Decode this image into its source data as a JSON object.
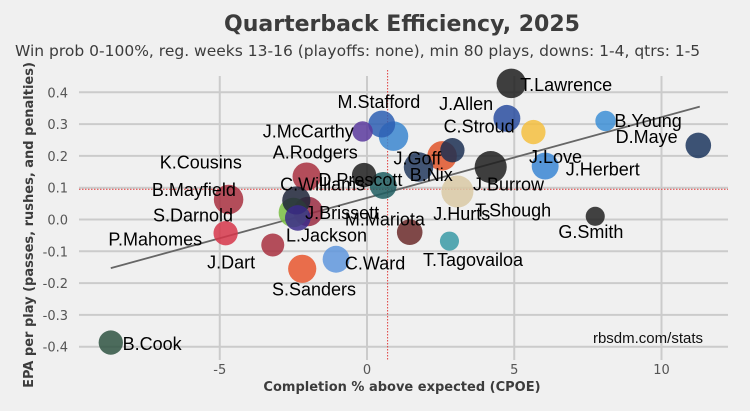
{
  "chart_data": {
    "type": "scatter",
    "title": "Quarterback Efficiency, 2025",
    "subtitle": "Win prob 0-100%, reg. weeks 13-16 (playoffs: none), min 80 plays, downs: 1-4, qtrs: 1-5",
    "xlabel": "Completion % above expected (CPOE)",
    "ylabel": "EPA per play (passes, rushes, and penalties)",
    "xlim": [
      -9.8,
      11.8
    ],
    "ylim": [
      -0.43,
      0.48
    ],
    "x_ticks": [
      -5,
      0,
      5,
      10
    ],
    "x_tick_labels": [
      "-5",
      "0",
      "5",
      "10"
    ],
    "y_ticks": [
      0.4,
      0.3,
      0.2,
      0.1,
      0.0,
      -0.1,
      -0.2,
      -0.3,
      -0.4
    ],
    "y_tick_labels": [
      "0.4",
      "0.3",
      "0.2",
      "0.1",
      "0.0",
      "-0.1",
      "-0.2",
      "-0.3",
      "-0.4"
    ],
    "grid": true,
    "reference_lines": {
      "x_mean": 0.7,
      "y_mean": 0.095,
      "color": "#e03c3c"
    },
    "trend_line": {
      "x": [
        -8.7,
        11.3
      ],
      "y": [
        -0.153,
        0.355
      ]
    },
    "watermark": "rbsdm.com/stats",
    "points": [
      {
        "name": "T.Lawrence",
        "x": 4.9,
        "y": 0.428,
        "size": 0.75,
        "color": "#1f1f1f",
        "label_dx": 0.3,
        "label_dy": -0.005,
        "anchor": "start"
      },
      {
        "name": "J.Allen",
        "x": 4.75,
        "y": 0.318,
        "size": 0.65,
        "color": "#2a4ea0",
        "label_dx": -2.3,
        "label_dy": 0.045,
        "anchor": "start"
      },
      {
        "name": "J.Love",
        "x": 5.65,
        "y": 0.275,
        "size": 0.55,
        "color": "#f5c040",
        "label_dx": -0.15,
        "label_dy": -0.078,
        "anchor": "start"
      },
      {
        "name": "B.Young",
        "x": 8.1,
        "y": 0.31,
        "size": 0.4,
        "color": "#3d8fd6",
        "label_dx": 0.3,
        "label_dy": 0.0,
        "anchor": "start"
      },
      {
        "name": "D.Maye",
        "x": 11.25,
        "y": 0.233,
        "size": 0.6,
        "color": "#1c365e",
        "label_dx": -0.7,
        "label_dy": 0.027,
        "anchor": "end"
      },
      {
        "name": "J.Herbert",
        "x": 6.05,
        "y": 0.168,
        "size": 0.65,
        "color": "#3a86d4",
        "label_dx": 0.7,
        "label_dy": -0.01,
        "anchor": "start"
      },
      {
        "name": "J.Burrow",
        "x": 4.2,
        "y": 0.165,
        "size": 0.85,
        "color": "#1f1f1f",
        "label_dx": -0.6,
        "label_dy": -0.055,
        "anchor": "start"
      },
      {
        "name": "C.Stroud",
        "x": 2.9,
        "y": 0.218,
        "size": 0.55,
        "color": "#1b2f52",
        "label_dx": -0.3,
        "label_dy": 0.075,
        "anchor": "start"
      },
      {
        "name": "B.Nix",
        "x": 2.55,
        "y": 0.2,
        "size": 0.75,
        "color": "#e0552a",
        "label_dx": -1.1,
        "label_dy": -0.06,
        "anchor": "start"
      },
      {
        "name": "D.Prescott",
        "x": 1.75,
        "y": 0.165,
        "size": 0.75,
        "color": "#233a5e",
        "label_dx": -3.4,
        "label_dy": -0.04,
        "anchor": "start"
      },
      {
        "name": "J.Goff",
        "x": 0.9,
        "y": 0.262,
        "size": 0.75,
        "color": "#3b86cf",
        "label_dx": 0.0,
        "label_dy": -0.07,
        "anchor": "start"
      },
      {
        "name": "M.Stafford",
        "x": 0.5,
        "y": 0.3,
        "size": 0.65,
        "color": "#2d5fb3",
        "label_dx": -1.5,
        "label_dy": 0.07,
        "anchor": "start"
      },
      {
        "name": "J.McCarthy",
        "x": -0.15,
        "y": 0.277,
        "size": 0.4,
        "color": "#5b3a9e",
        "label_dx": -0.3,
        "label_dy": 0.0,
        "anchor": "end"
      },
      {
        "name": "J.Hurts",
        "x": 0.55,
        "y": 0.107,
        "size": 0.65,
        "color": "#1f5d60",
        "label_dx": 1.7,
        "label_dy": -0.09,
        "anchor": "start"
      },
      {
        "name": "A.Rodgers",
        "x": -0.1,
        "y": 0.14,
        "size": 0.55,
        "color": "#1f1f1f",
        "label_dx": -3.1,
        "label_dy": 0.07,
        "anchor": "start"
      },
      {
        "name": "T.Shough",
        "x": 3.07,
        "y": 0.088,
        "size": 0.85,
        "color": "#d9c9a4",
        "label_dx": 0.6,
        "label_dy": -0.06,
        "anchor": "start"
      },
      {
        "name": "K.Cousins",
        "x": -2.05,
        "y": 0.135,
        "size": 0.7,
        "color": "#a8303f",
        "label_dx": -2.2,
        "label_dy": 0.045,
        "anchor": "end"
      },
      {
        "name": "B.Mayfield",
        "x": -4.7,
        "y": 0.063,
        "size": 0.75,
        "color": "#a8303f",
        "label_dx": 0.25,
        "label_dy": 0.03,
        "anchor": "end"
      },
      {
        "name": "C.Williams",
        "x": -2.4,
        "y": 0.06,
        "size": 0.7,
        "color": "#1f2538",
        "label_dx": -0.55,
        "label_dy": 0.05,
        "anchor": "start"
      },
      {
        "name": "J.Brissett",
        "x": -2.0,
        "y": 0.025,
        "size": 0.75,
        "color": "#9a2b42",
        "label_dx": -0.1,
        "label_dy": -0.005,
        "anchor": "start"
      },
      {
        "name": "S.Darnold",
        "x": -2.5,
        "y": 0.022,
        "size": 0.75,
        "color": "#7ac043",
        "label_dx": -2.05,
        "label_dy": -0.01,
        "anchor": "end"
      },
      {
        "name": "L.Jackson",
        "x": -2.35,
        "y": 0.005,
        "size": 0.6,
        "color": "#3b2a8a",
        "label_dx": -0.4,
        "label_dy": -0.055,
        "anchor": "start"
      },
      {
        "name": "M.Mariota",
        "x": 1.45,
        "y": -0.04,
        "size": 0.6,
        "color": "#6b2a2a",
        "label_dx": -2.2,
        "label_dy": 0.04,
        "anchor": "start"
      },
      {
        "name": "T.Tagovailoa",
        "x": 2.8,
        "y": -0.068,
        "size": 0.35,
        "color": "#3a9aa6",
        "label_dx": -0.9,
        "label_dy": -0.06,
        "anchor": "start"
      },
      {
        "name": "G.Smith",
        "x": 7.75,
        "y": 0.01,
        "size": 0.35,
        "color": "#222222",
        "label_dx": -1.25,
        "label_dy": -0.05,
        "anchor": "start"
      },
      {
        "name": "P.Mahomes",
        "x": -4.8,
        "y": -0.043,
        "size": 0.55,
        "color": "#d6364a",
        "label_dx": -0.8,
        "label_dy": -0.02,
        "anchor": "end"
      },
      {
        "name": "J.Dart",
        "x": -3.2,
        "y": -0.08,
        "size": 0.5,
        "color": "#a8303f",
        "label_dx": -0.6,
        "label_dy": -0.055,
        "anchor": "end"
      },
      {
        "name": "C.Ward",
        "x": -1.05,
        "y": -0.125,
        "size": 0.65,
        "color": "#5f97dd",
        "label_dx": 0.3,
        "label_dy": -0.013,
        "anchor": "start"
      },
      {
        "name": "S.Sanders",
        "x": -2.2,
        "y": -0.155,
        "size": 0.7,
        "color": "#e8562e",
        "label_dx": 0.4,
        "label_dy": -0.065,
        "anchor": "middle"
      },
      {
        "name": "B.Cook",
        "x": -8.7,
        "y": -0.387,
        "size": 0.55,
        "color": "#2f5442",
        "label_dx": 0.4,
        "label_dy": -0.005,
        "anchor": "start"
      }
    ]
  }
}
